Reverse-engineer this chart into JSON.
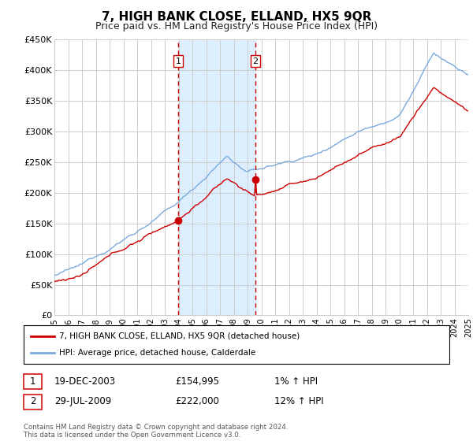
{
  "title": "7, HIGH BANK CLOSE, ELLAND, HX5 9QR",
  "subtitle": "Price paid vs. HM Land Registry's House Price Index (HPI)",
  "ylim": [
    0,
    450000
  ],
  "yticks": [
    0,
    50000,
    100000,
    150000,
    200000,
    250000,
    300000,
    350000,
    400000,
    450000
  ],
  "ytick_labels": [
    "£0",
    "£50K",
    "£100K",
    "£150K",
    "£200K",
    "£250K",
    "£300K",
    "£350K",
    "£400K",
    "£450K"
  ],
  "xlim_start": 1995,
  "xlim_end": 2025,
  "transaction1": {
    "date_num": 2003.97,
    "price": 154995,
    "label": "1",
    "date_str": "19-DEC-2003",
    "hpi_pct": "1%"
  },
  "transaction2": {
    "date_num": 2009.57,
    "price": 222000,
    "label": "2",
    "date_str": "29-JUL-2009",
    "hpi_pct": "12%"
  },
  "legend_line1": "7, HIGH BANK CLOSE, ELLAND, HX5 9QR (detached house)",
  "legend_line2": "HPI: Average price, detached house, Calderdale",
  "footer": "Contains HM Land Registry data © Crown copyright and database right 2024.\nThis data is licensed under the Open Government Licence v3.0.",
  "red_color": "#cc0000",
  "blue_color": "#7aaadd",
  "shade_color": "#ddeeff",
  "grid_color": "#cccccc",
  "background_color": "#ffffff",
  "title_fontsize": 11,
  "subtitle_fontsize": 9
}
